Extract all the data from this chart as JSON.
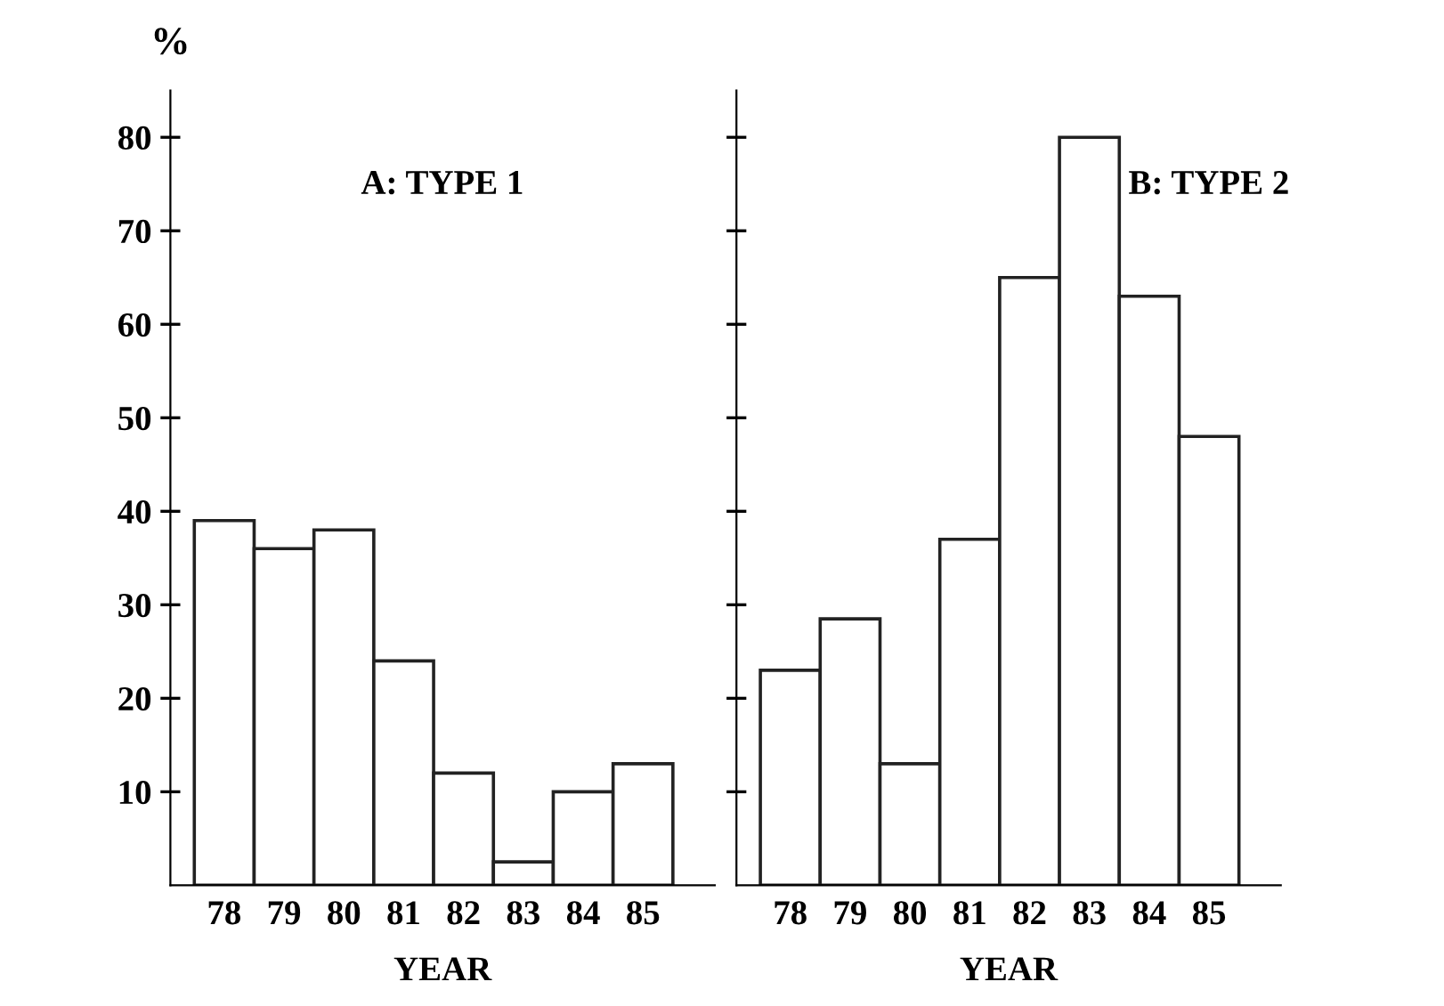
{
  "chart_data": [
    {
      "type": "bar",
      "title": "A: TYPE 1",
      "xlabel": "YEAR",
      "ylabel": "%",
      "categories": [
        "78",
        "79",
        "80",
        "81",
        "82",
        "83",
        "84",
        "85"
      ],
      "values": [
        39,
        36,
        38,
        24,
        12,
        2.5,
        10,
        13
      ],
      "color": "#ffffff",
      "ylim": [
        0,
        85
      ],
      "yticks": [
        10,
        20,
        30,
        40,
        50,
        60,
        70,
        80
      ],
      "grid": false
    },
    {
      "type": "bar",
      "title": "B: TYPE 2",
      "xlabel": "YEAR",
      "categories": [
        "78",
        "79",
        "80",
        "81",
        "82",
        "83",
        "84",
        "85"
      ],
      "values": [
        23,
        28.5,
        13,
        37,
        65,
        80,
        63,
        48
      ],
      "color": "#ffffff",
      "ylim": [
        0,
        85
      ],
      "yticks": [
        {
          "value": 10,
          "label": null
        },
        {
          "value": 20,
          "label": null
        },
        {
          "value": 30,
          "label": null
        },
        {
          "value": 40,
          "label": null
        },
        {
          "value": 50,
          "label": null
        },
        {
          "value": 60,
          "label": null
        },
        {
          "value": 70,
          "label": null
        },
        {
          "value": 80,
          "label": null
        }
      ],
      "grid": false,
      "tick_labels": "x"
    }
  ]
}
